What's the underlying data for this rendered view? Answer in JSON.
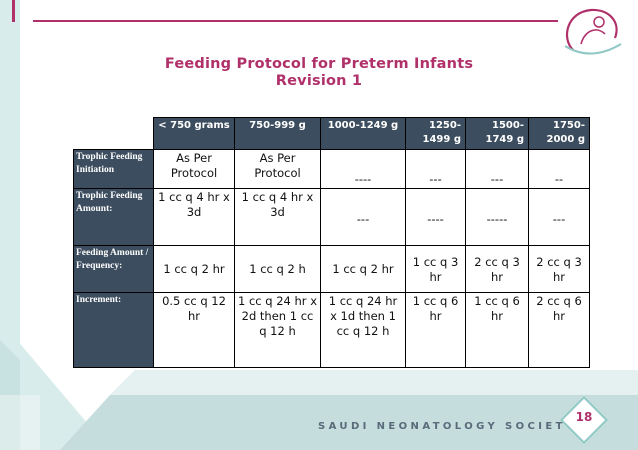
{
  "title": {
    "line1": "Feeding Protocol for Preterm Infants",
    "line2": "Revision 1"
  },
  "table": {
    "headers": [
      "< 750 grams",
      "750-999 g",
      "1000-1249 g",
      "1250-1499 g",
      "1500-1749 g",
      "1750-2000 g"
    ],
    "rows": [
      {
        "label": "Trophic Feeding Initiation",
        "cells": [
          "As Per Protocol",
          "As Per Protocol",
          "----",
          "---",
          "---",
          "--"
        ]
      },
      {
        "label": "Trophic Feeding Amount:",
        "cells": [
          "1 cc q 4 hr x 3d",
          "1 cc q 4 hr x 3d",
          "---",
          "----",
          "-----",
          "---"
        ]
      },
      {
        "label": "Feeding Amount / Frequency:",
        "cells": [
          "1 cc q 2 hr",
          "1 cc q 2 h",
          "1 cc q 2 hr",
          "1 cc q 3 hr",
          "2 cc q 3 hr",
          "2 cc q 3 hr"
        ]
      },
      {
        "label": "Increment:",
        "cells": [
          "0.5 cc q 12 hr",
          "1 cc q 24 hr x 2d then 1 cc q 12 h",
          "1 cc q 24 hr x 1d then 1 cc q 12 h",
          "1 cc q 6 hr",
          "1 cc q 6 hr",
          "2 cc q 6 hr"
        ]
      }
    ]
  },
  "footer": {
    "society": "SAUDI NEONATOLOGY SOCIETY",
    "page_number": "18"
  },
  "colors": {
    "accent": "#b0306a",
    "header_bg": "#3c4d5f",
    "teal": "#8fc8c4"
  },
  "icons": [
    "society-logo-icon"
  ]
}
